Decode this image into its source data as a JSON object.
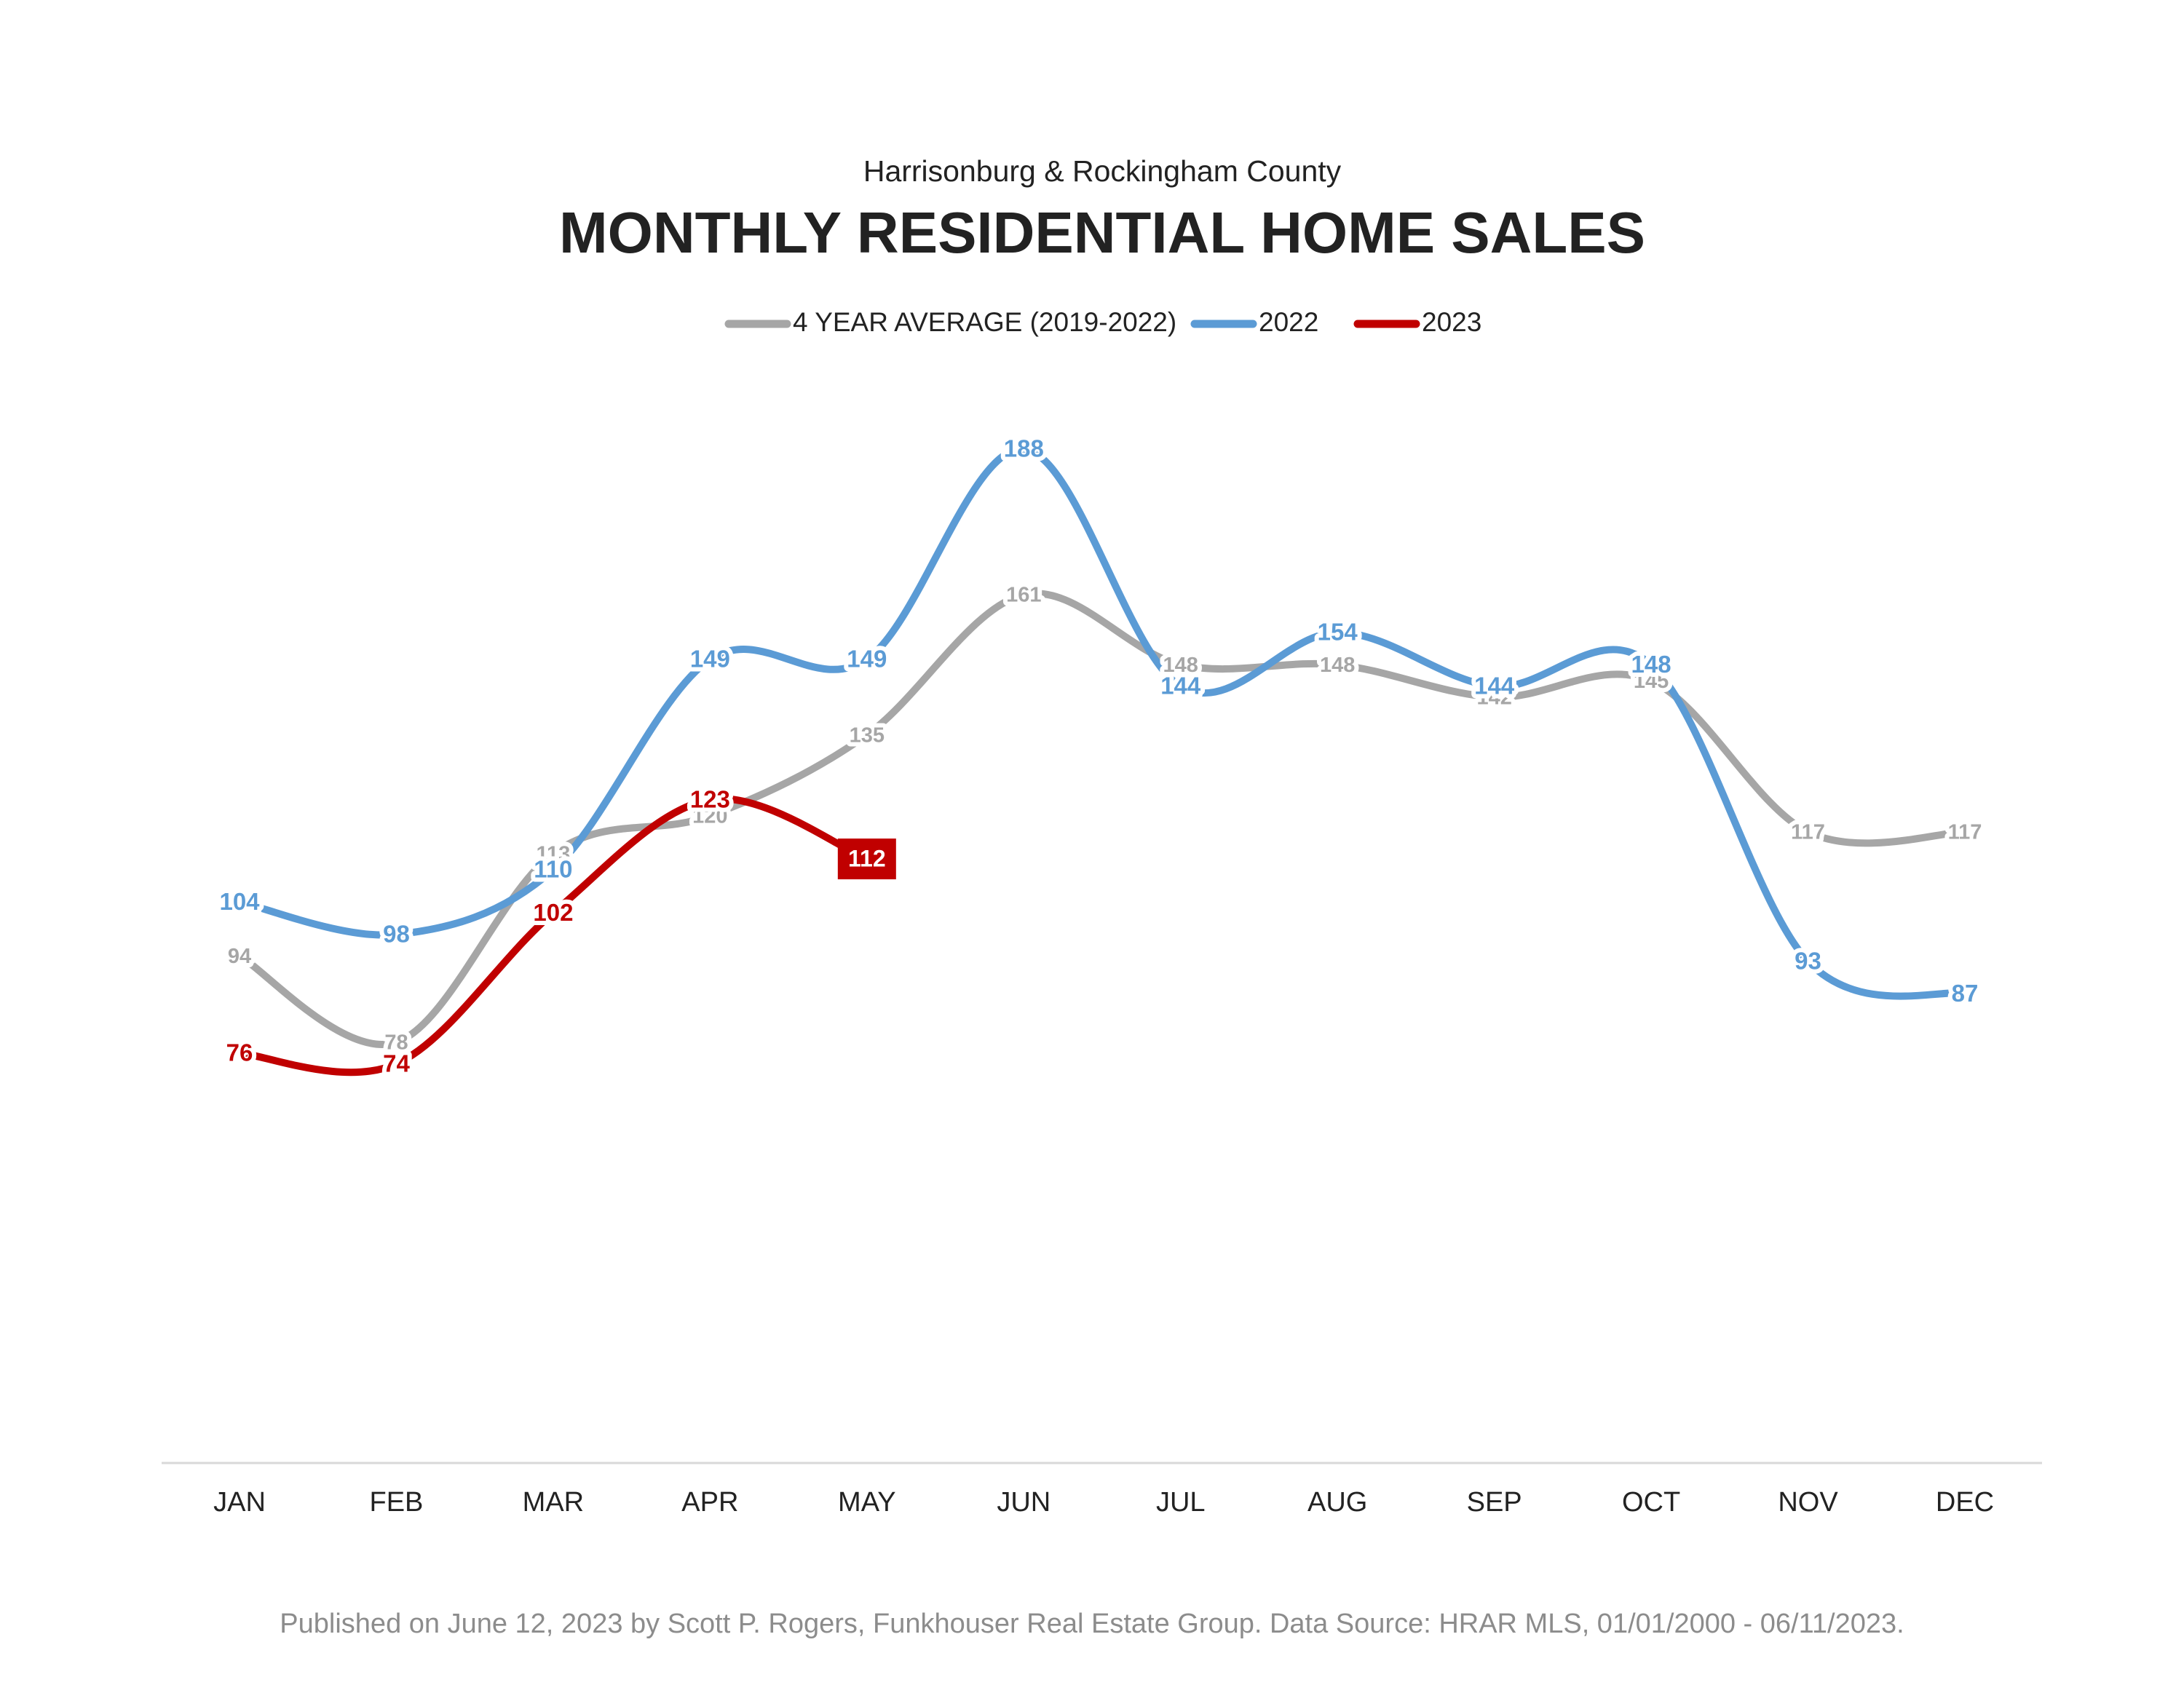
{
  "chart_data": {
    "type": "line",
    "subtitle": "Harrisonburg & Rockingham County",
    "title": "MONTHLY RESIDENTIAL HOME SALES",
    "categories": [
      "JAN",
      "FEB",
      "MAR",
      "APR",
      "MAY",
      "JUN",
      "JUL",
      "AUG",
      "SEP",
      "OCT",
      "NOV",
      "DEC"
    ],
    "series": [
      {
        "name": "4 YEAR AVERAGE (2019-2022)",
        "color": "#a6a6a6",
        "values": [
          94,
          78,
          113,
          120,
          135,
          161,
          148,
          148,
          142,
          145,
          117,
          117
        ]
      },
      {
        "name": "2022",
        "color": "#5b9bd5",
        "values": [
          104,
          98,
          110,
          149,
          149,
          188,
          144,
          154,
          144,
          148,
          93,
          87
        ]
      },
      {
        "name": "2023",
        "color": "#c00000",
        "values": [
          76,
          74,
          102,
          123,
          112,
          null,
          null,
          null,
          null,
          null,
          null,
          null
        ]
      }
    ],
    "ylim": [
      0,
      200
    ],
    "legend": "top",
    "footer": "Published on June 12, 2023 by Scott P. Rogers, Funkhouser Real Estate Group. Data Source: HRAR MLS, 01/01/2000 - 06/11/2023."
  }
}
